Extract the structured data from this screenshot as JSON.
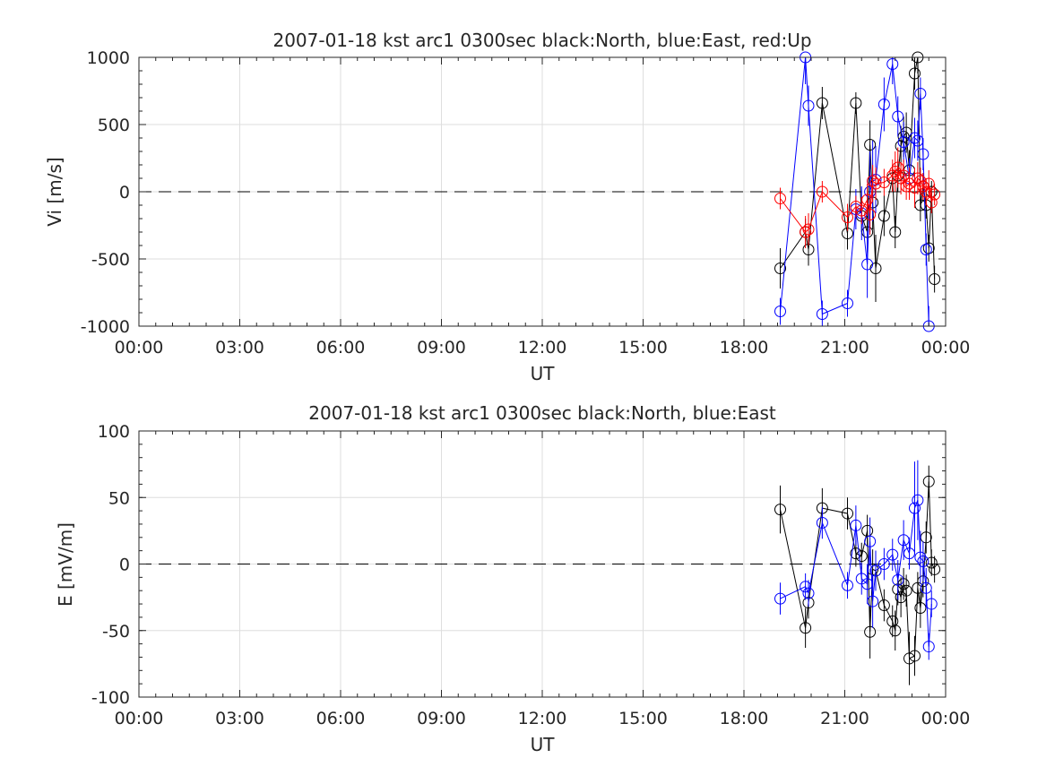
{
  "chart_data": [
    {
      "type": "line",
      "title": "2007-01-18 kst arc1 0300sec black:North, blue:East, red:Up",
      "xlabel": "UT",
      "ylabel": "Vi [m/s]",
      "xlim": [
        0,
        24
      ],
      "ylim": [
        -1000,
        1000
      ],
      "xticks": [
        0,
        3,
        6,
        9,
        12,
        15,
        18,
        21,
        24
      ],
      "xtick_labels": [
        "00:00",
        "03:00",
        "06:00",
        "09:00",
        "12:00",
        "15:00",
        "18:00",
        "21:00",
        "00:00"
      ],
      "yticks": [
        -1000,
        -500,
        0,
        500,
        1000
      ],
      "ytick_labels": [
        "-1000",
        "-500",
        "0",
        "500",
        "1000"
      ],
      "grid": true,
      "zero_line": "dashed",
      "series": [
        {
          "name": "North",
          "color": "#000000",
          "x": [
            19.08,
            19.83,
            19.92,
            20.33,
            21.08,
            21.33,
            21.5,
            21.67,
            21.75,
            21.83,
            21.92,
            22.17,
            22.42,
            22.5,
            22.58,
            22.67,
            22.75,
            22.83,
            22.92,
            23.08,
            23.17,
            23.25,
            23.33,
            23.42,
            23.5,
            23.58,
            23.67
          ],
          "y": [
            -570,
            -300,
            -430,
            660,
            -310,
            660,
            -180,
            -300,
            350,
            -80,
            -570,
            -180,
            100,
            -300,
            120,
            340,
            410,
            440,
            160,
            880,
            1000,
            -100,
            40,
            -100,
            -420,
            0,
            -650
          ],
          "err": [
            150,
            100,
            120,
            120,
            120,
            80,
            120,
            150,
            180,
            200,
            250,
            150,
            100,
            120,
            120,
            150,
            150,
            150,
            150,
            120,
            120,
            120,
            100,
            100,
            100,
            80,
            100
          ]
        },
        {
          "name": "East",
          "color": "#0000ff",
          "x": [
            19.08,
            19.83,
            19.92,
            20.33,
            21.08,
            21.33,
            21.5,
            21.67,
            21.75,
            21.83,
            21.92,
            22.17,
            22.42,
            22.58,
            22.75,
            22.92,
            23.08,
            23.17,
            23.25,
            23.33,
            23.42,
            23.5
          ],
          "y": [
            -890,
            1000,
            640,
            -910,
            -830,
            -130,
            -160,
            -540,
            0,
            80,
            90,
            650,
            950,
            560,
            370,
            100,
            400,
            380,
            730,
            280,
            -430,
            -1000
          ],
          "err": [
            100,
            200,
            150,
            100,
            100,
            150,
            200,
            250,
            300,
            300,
            250,
            200,
            150,
            150,
            150,
            150,
            150,
            150,
            120,
            120,
            120,
            150
          ]
        },
        {
          "name": "Up",
          "color": "#ff0000",
          "x": [
            19.08,
            19.83,
            19.92,
            20.33,
            21.08,
            21.33,
            21.5,
            21.67,
            21.75,
            21.83,
            21.92,
            22.17,
            22.42,
            22.5,
            22.58,
            22.67,
            22.75,
            22.83,
            22.92,
            23.08,
            23.17,
            23.25,
            23.33,
            23.42,
            23.5,
            23.58,
            23.67
          ],
          "y": [
            -50,
            -300,
            -280,
            0,
            -190,
            -110,
            -140,
            -60,
            -170,
            80,
            60,
            70,
            120,
            150,
            180,
            100,
            120,
            40,
            60,
            30,
            100,
            80,
            40,
            0,
            60,
            -80,
            -20
          ],
          "err": [
            80,
            120,
            120,
            80,
            100,
            80,
            100,
            120,
            150,
            120,
            120,
            100,
            120,
            150,
            150,
            120,
            120,
            100,
            120,
            150,
            120,
            100,
            100,
            100,
            100,
            80,
            80
          ]
        }
      ]
    },
    {
      "type": "line",
      "title": "2007-01-18 kst arc1 0300sec black:North, blue:East",
      "xlabel": "UT",
      "ylabel": "E [mV/m]",
      "xlim": [
        0,
        24
      ],
      "ylim": [
        -100,
        100
      ],
      "xticks": [
        0,
        3,
        6,
        9,
        12,
        15,
        18,
        21,
        24
      ],
      "xtick_labels": [
        "00:00",
        "03:00",
        "06:00",
        "09:00",
        "12:00",
        "15:00",
        "18:00",
        "21:00",
        "00:00"
      ],
      "yticks": [
        -100,
        -50,
        0,
        50,
        100
      ],
      "ytick_labels": [
        "-100",
        "-50",
        "0",
        "50",
        "100"
      ],
      "grid": true,
      "zero_line": "dashed",
      "series": [
        {
          "name": "North",
          "color": "#000000",
          "x": [
            19.08,
            19.83,
            19.92,
            20.33,
            21.08,
            21.33,
            21.5,
            21.67,
            21.75,
            21.83,
            21.92,
            22.17,
            22.42,
            22.5,
            22.58,
            22.67,
            22.75,
            22.83,
            22.92,
            23.08,
            23.17,
            23.25,
            23.33,
            23.42,
            23.5,
            23.58,
            23.67
          ],
          "y": [
            41,
            -48,
            -29,
            42,
            38,
            8,
            6,
            25,
            -51,
            -4,
            -5,
            -31,
            -43,
            -50,
            -19,
            -25,
            -15,
            -20,
            -71,
            -69,
            -18,
            -33,
            -13,
            20,
            62,
            1,
            -4
          ],
          "err": [
            18,
            15,
            12,
            15,
            12,
            10,
            10,
            12,
            20,
            15,
            15,
            12,
            12,
            15,
            12,
            15,
            12,
            12,
            20,
            15,
            12,
            15,
            12,
            12,
            12,
            10,
            10
          ]
        },
        {
          "name": "East",
          "color": "#0000ff",
          "x": [
            19.08,
            19.83,
            19.92,
            20.33,
            21.08,
            21.33,
            21.5,
            21.67,
            21.75,
            21.83,
            21.92,
            22.17,
            22.42,
            22.58,
            22.75,
            22.92,
            23.08,
            23.17,
            23.25,
            23.33,
            23.42,
            23.5,
            23.58
          ],
          "y": [
            -26,
            -17,
            -22,
            31,
            -16,
            29,
            -11,
            -15,
            17,
            -28,
            -5,
            0,
            7,
            -12,
            18,
            8,
            42,
            48,
            5,
            2,
            -18,
            -62,
            -30
          ],
          "err": [
            12,
            10,
            10,
            12,
            10,
            15,
            12,
            15,
            18,
            20,
            15,
            12,
            12,
            15,
            15,
            12,
            35,
            30,
            20,
            15,
            15,
            10,
            10
          ]
        }
      ]
    }
  ]
}
